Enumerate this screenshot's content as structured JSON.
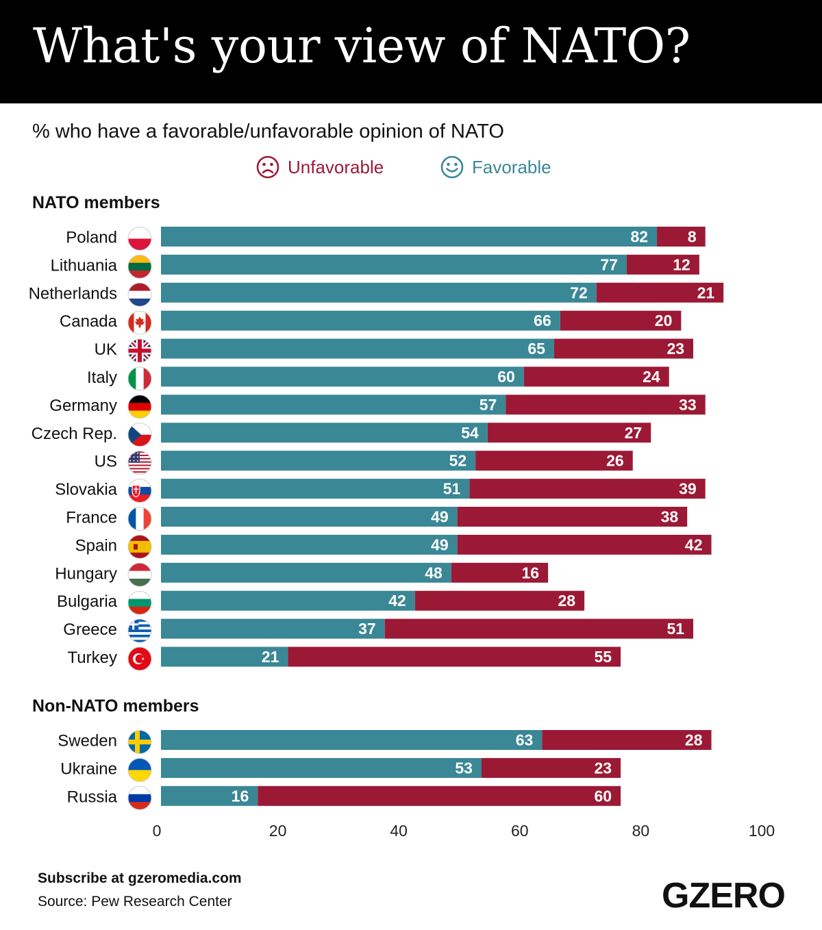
{
  "title": "What's your view of NATO?",
  "subtitle": "% who have a favorable/unfavorable opinion of NATO",
  "legend": {
    "unfavorable": "Unfavorable",
    "favorable": "Favorable",
    "unfavorable_icon": "frown-icon",
    "favorable_icon": "smile-icon"
  },
  "colors": {
    "favorable": "#3a8796",
    "unfavorable": "#9c1935",
    "header_bg": "#000000"
  },
  "footer": {
    "subscribe": "Subscribe at gzeromedia.com",
    "source": "Source: Pew Research Center",
    "logo": "GZERO"
  },
  "chart_data": {
    "type": "bar",
    "orientation": "horizontal",
    "stacked": true,
    "title": "What's your view of NATO?",
    "subtitle": "% who have a favorable/unfavorable opinion of NATO",
    "xlim": [
      0,
      100
    ],
    "xticks": [
      0,
      20,
      40,
      60,
      80,
      100
    ],
    "groups": [
      {
        "name": "NATO members",
        "categories": [
          "Poland",
          "Lithuania",
          "Netherlands",
          "Canada",
          "UK",
          "Italy",
          "Germany",
          "Czech Rep.",
          "US",
          "Slovakia",
          "France",
          "Spain",
          "Hungary",
          "Bulgaria",
          "Greece",
          "Turkey"
        ],
        "flags": [
          "poland-flag-icon",
          "lithuania-flag-icon",
          "netherlands-flag-icon",
          "canada-flag-icon",
          "uk-flag-icon",
          "italy-flag-icon",
          "germany-flag-icon",
          "czech-flag-icon",
          "us-flag-icon",
          "slovakia-flag-icon",
          "france-flag-icon",
          "spain-flag-icon",
          "hungary-flag-icon",
          "bulgaria-flag-icon",
          "greece-flag-icon",
          "turkey-flag-icon"
        ],
        "favorable": [
          82,
          77,
          72,
          66,
          65,
          60,
          57,
          54,
          52,
          51,
          49,
          49,
          48,
          42,
          37,
          21
        ],
        "unfavorable": [
          8,
          12,
          21,
          20,
          23,
          24,
          33,
          27,
          26,
          39,
          38,
          42,
          16,
          28,
          51,
          55
        ]
      },
      {
        "name": "Non-NATO members",
        "categories": [
          "Sweden",
          "Ukraine",
          "Russia"
        ],
        "flags": [
          "sweden-flag-icon",
          "ukraine-flag-icon",
          "russia-flag-icon"
        ],
        "favorable": [
          63,
          53,
          16
        ],
        "unfavorable": [
          28,
          23,
          60
        ]
      }
    ],
    "series": [
      {
        "name": "Favorable",
        "color": "#3a8796"
      },
      {
        "name": "Unfavorable",
        "color": "#9c1935"
      }
    ],
    "legend_position": "top-center"
  }
}
